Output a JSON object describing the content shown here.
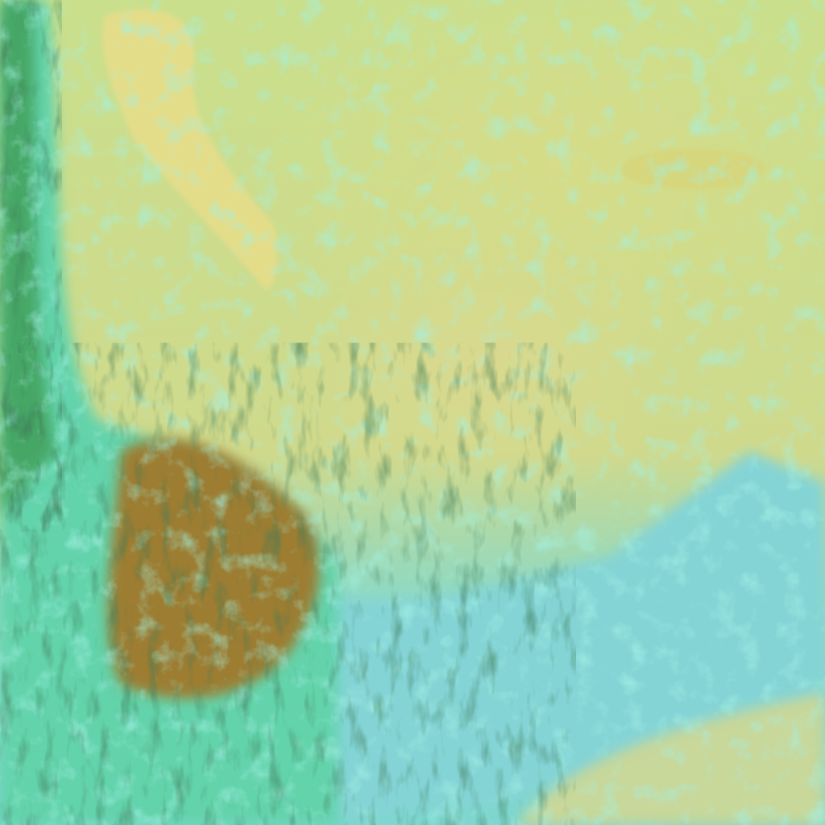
{
  "image": {
    "kind": "false-color satellite imagery",
    "colors": {
      "land_plain": "#d3d78c",
      "cloud_cyan": "#5fe0c8",
      "ocean": "#7fd6d6",
      "mountain_brown": "#9a7a2a",
      "vegetation_green": "#2f8a3a",
      "pale_ridge": "#e0dc8a"
    }
  }
}
